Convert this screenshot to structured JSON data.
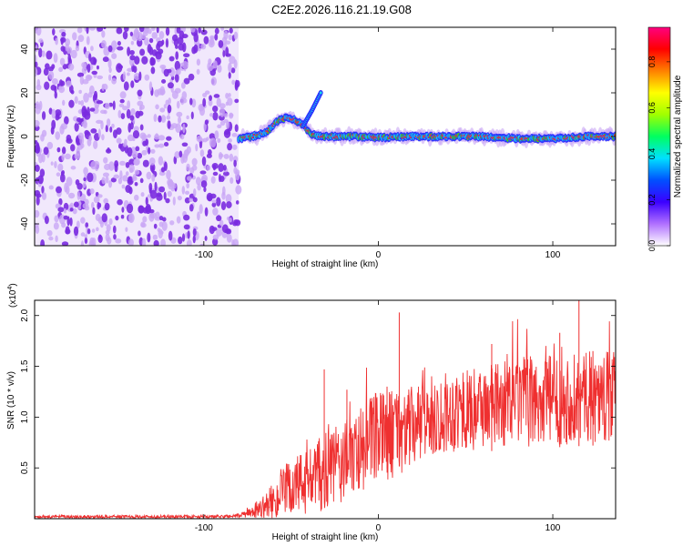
{
  "title": "C2E2.2026.116.21.19.G08",
  "colors": {
    "noise": "#7a2be0",
    "noise_light": "#c9a6f5",
    "ridge_edge": "#2a2cff",
    "ridge_mid": "#18d9e8",
    "ridge_core": "#ff2a2a",
    "ridge_green": "#49e000",
    "snr_line": "#ef3030"
  },
  "chart_data": [
    {
      "type": "heatmap",
      "name": "spectrogram",
      "xlabel": "Height of straight line (km)",
      "ylabel": "Frequency (Hz)",
      "xlim": [
        -197,
        136
      ],
      "ylim": [
        -50,
        50
      ],
      "xticks": [
        -100,
        0,
        100
      ],
      "xtick_labels": [
        "-100",
        "0",
        "100"
      ],
      "yticks": [
        -40,
        -20,
        0,
        20,
        40
      ],
      "ytick_labels": [
        "-40",
        "-20",
        "0",
        "20",
        "40"
      ],
      "noise_region_x": [
        -197,
        -80
      ],
      "ridge": {
        "x": [
          -80,
          -72,
          -64,
          -58,
          -52,
          -47,
          -43,
          -38,
          -33,
          -25,
          -15,
          0,
          20,
          40,
          60,
          80,
          100,
          120,
          136
        ],
        "y": [
          -1,
          0,
          2,
          7,
          9,
          7,
          5,
          1,
          0,
          0,
          0,
          -0.5,
          0,
          0,
          0,
          -1,
          -1,
          0,
          0
        ]
      },
      "branch": {
        "x": [
          -43,
          -38,
          -33
        ],
        "y": [
          5,
          12,
          20
        ]
      },
      "colorbar": {
        "label": "Normalized spectral amplitude",
        "range": [
          0,
          0.95
        ],
        "ticks": [
          0.0,
          0.2,
          0.4,
          0.6,
          0.8
        ],
        "tick_labels": [
          "0.0",
          "0.2",
          "0.4",
          "0.6",
          "0.8"
        ],
        "colors": [
          "#ffffff",
          "#b070ff",
          "#3b00ff",
          "#0050ff",
          "#00e0ff",
          "#00ff60",
          "#a0ff00",
          "#ffff00",
          "#ff8000",
          "#ff0000",
          "#ff0080"
        ]
      }
    },
    {
      "type": "line",
      "name": "snr",
      "xlabel": "Height of straight line (km)",
      "ylabel": "SNR (10 * v/v)",
      "y_scale_label": "(x10",
      "y_scale_exp": "4",
      "xlim": [
        -197,
        136
      ],
      "ylim": [
        0,
        2.15
      ],
      "xticks": [
        -100,
        0,
        100
      ],
      "xtick_labels": [
        "-100",
        "0",
        "100"
      ],
      "yticks": [
        0.5,
        1.0,
        1.5,
        2.0
      ],
      "ytick_labels": [
        "0.5",
        "1.0",
        "1.5",
        "2.0"
      ],
      "envelope": {
        "x": [
          -197,
          -90,
          -80,
          -70,
          -60,
          -50,
          -40,
          -30,
          -20,
          -10,
          0,
          10,
          20,
          30,
          40,
          50,
          60,
          70,
          80,
          90,
          100,
          110,
          120,
          130,
          136
        ],
        "mean": [
          0.02,
          0.02,
          0.03,
          0.07,
          0.18,
          0.3,
          0.38,
          0.45,
          0.55,
          0.7,
          0.8,
          0.85,
          0.9,
          1.0,
          1.05,
          1.07,
          1.1,
          1.12,
          1.15,
          1.15,
          1.17,
          1.18,
          1.2,
          1.2,
          1.2
        ],
        "spread": [
          0.015,
          0.015,
          0.02,
          0.06,
          0.18,
          0.3,
          0.35,
          0.4,
          0.4,
          0.45,
          0.45,
          0.45,
          0.4,
          0.4,
          0.4,
          0.4,
          0.42,
          0.42,
          0.45,
          0.45,
          0.45,
          0.45,
          0.45,
          0.45,
          0.45
        ]
      },
      "peaks": [
        {
          "x": -31,
          "y": 1.47
        },
        {
          "x": -18,
          "y": 1.27
        },
        {
          "x": 5,
          "y": 1.3
        },
        {
          "x": 12,
          "y": 2.03
        },
        {
          "x": 65,
          "y": 1.72
        },
        {
          "x": 104,
          "y": 1.83
        },
        {
          "x": 115,
          "y": 2.15
        },
        {
          "x": 123,
          "y": 1.65
        }
      ]
    }
  ]
}
